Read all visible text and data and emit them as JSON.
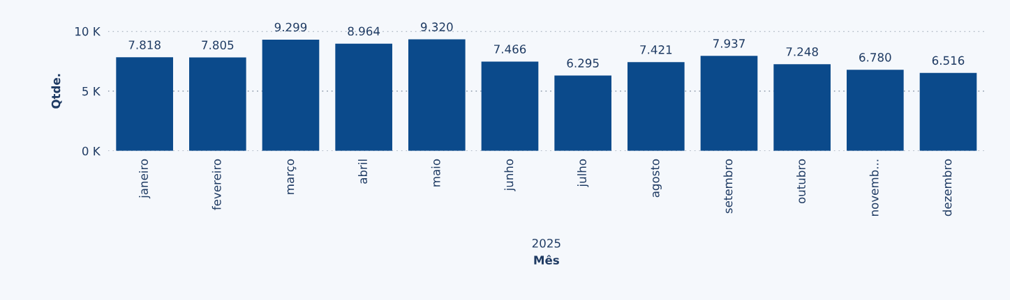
{
  "chart_data": {
    "type": "bar",
    "xlabel": "Mês",
    "ylabel": "Qtde.",
    "categories": [
      "janeiro",
      "fevereiro",
      "março",
      "abril",
      "maio",
      "junho",
      "julho",
      "agosto",
      "setembro",
      "outubro",
      "novemb...",
      "dezembro"
    ],
    "values": [
      7818,
      7805,
      9299,
      8964,
      9320,
      7466,
      6295,
      7421,
      7937,
      7248,
      6780,
      6516
    ],
    "value_labels": [
      "7.818",
      "7.805",
      "9.299",
      "8.964",
      "9.320",
      "7.466",
      "6.295",
      "7.421",
      "7.937",
      "7.248",
      "6.780",
      "6.516"
    ],
    "color": "#0b4a8b",
    "ylim": [
      0,
      10000
    ],
    "yticks": [
      {
        "value": 0,
        "label": "0 K"
      },
      {
        "value": 5000,
        "label": "5 K"
      },
      {
        "value": 10000,
        "label": "10 K"
      }
    ],
    "grid": "y",
    "annotations": [
      "2025"
    ]
  }
}
